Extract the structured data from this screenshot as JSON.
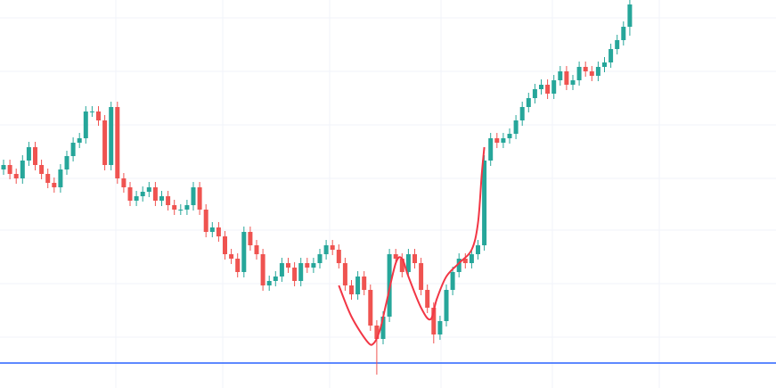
{
  "chart_data": {
    "type": "candlestick",
    "ylim": [
      0,
      435
    ],
    "up_color": "#26a69a",
    "down_color": "#ef5350",
    "open": [
      245,
      250,
      240,
      235,
      255,
      270,
      250,
      240,
      230,
      225,
      245,
      260,
      275,
      280,
      310,
      310,
      300,
      250,
      315,
      235,
      225,
      210,
      215,
      220,
      225,
      210,
      215,
      205,
      200,
      200,
      205,
      225,
      200,
      175,
      180,
      170,
      150,
      145,
      130,
      175,
      160,
      150,
      115,
      120,
      125,
      140,
      135,
      120,
      140,
      135,
      140,
      150,
      160,
      155,
      140,
      115,
      105,
      125,
      110,
      70,
      55,
      80,
      150,
      145,
      130,
      150,
      140,
      110,
      90,
      60,
      75,
      110,
      130,
      145,
      140,
      150,
      160,
      255,
      280,
      275,
      280,
      285,
      300,
      315,
      325,
      335,
      340,
      330,
      345,
      355,
      340,
      345,
      360,
      355,
      350,
      360,
      365,
      380,
      390,
      405
    ],
    "high": [
      256,
      256,
      246,
      261,
      276,
      276,
      256,
      246,
      236,
      251,
      266,
      281,
      286,
      316,
      316,
      316,
      306,
      321,
      321,
      241,
      231,
      221,
      226,
      231,
      231,
      221,
      221,
      211,
      206,
      211,
      231,
      231,
      206,
      186,
      186,
      176,
      156,
      151,
      181,
      181,
      166,
      156,
      126,
      131,
      146,
      146,
      141,
      146,
      146,
      146,
      156,
      166,
      166,
      161,
      146,
      121,
      131,
      131,
      116,
      76,
      86,
      156,
      156,
      151,
      156,
      156,
      146,
      116,
      96,
      81,
      116,
      136,
      151,
      151,
      156,
      166,
      261,
      286,
      286,
      286,
      291,
      306,
      321,
      331,
      341,
      346,
      346,
      351,
      361,
      361,
      351,
      366,
      366,
      361,
      366,
      371,
      386,
      396,
      411,
      435
    ],
    "low": [
      239,
      234,
      229,
      229,
      249,
      244,
      234,
      224,
      219,
      219,
      239,
      254,
      269,
      274,
      304,
      294,
      244,
      244,
      229,
      219,
      204,
      204,
      209,
      214,
      204,
      204,
      199,
      194,
      194,
      194,
      199,
      194,
      169,
      169,
      164,
      144,
      139,
      124,
      124,
      154,
      144,
      109,
      109,
      114,
      119,
      129,
      114,
      114,
      129,
      129,
      134,
      144,
      149,
      134,
      109,
      99,
      99,
      104,
      64,
      15,
      49,
      74,
      139,
      124,
      124,
      134,
      104,
      84,
      50,
      54,
      69,
      104,
      124,
      134,
      134,
      144,
      154,
      249,
      269,
      269,
      274,
      279,
      294,
      309,
      319,
      329,
      324,
      324,
      339,
      334,
      334,
      339,
      349,
      344,
      344,
      354,
      359,
      374,
      384,
      395
    ],
    "close": [
      250,
      240,
      235,
      255,
      270,
      250,
      240,
      230,
      225,
      245,
      260,
      275,
      280,
      310,
      310,
      300,
      250,
      315,
      235,
      225,
      210,
      215,
      220,
      225,
      210,
      215,
      205,
      200,
      200,
      205,
      225,
      200,
      175,
      180,
      170,
      150,
      145,
      130,
      175,
      160,
      150,
      115,
      120,
      125,
      140,
      135,
      120,
      140,
      135,
      140,
      150,
      160,
      155,
      140,
      115,
      105,
      125,
      110,
      70,
      55,
      80,
      150,
      145,
      130,
      150,
      140,
      110,
      90,
      60,
      75,
      110,
      130,
      145,
      140,
      150,
      160,
      255,
      280,
      275,
      280,
      285,
      300,
      315,
      325,
      335,
      340,
      330,
      345,
      355,
      340,
      345,
      360,
      355,
      350,
      360,
      365,
      380,
      390,
      405,
      430
    ],
    "hline": {
      "value": 28,
      "color": "#2962ff"
    },
    "curve": {
      "color": "#f23645",
      "x": [
        53,
        55,
        57.5,
        58.5,
        59.5,
        60.5,
        62,
        63,
        64,
        66,
        67.5,
        68.5,
        70,
        72,
        74,
        75,
        75.6,
        76
      ],
      "values": [
        115,
        80,
        52,
        50,
        65,
        95,
        140,
        145,
        125,
        90,
        77,
        100,
        125,
        140,
        155,
        185,
        240,
        270
      ]
    }
  }
}
